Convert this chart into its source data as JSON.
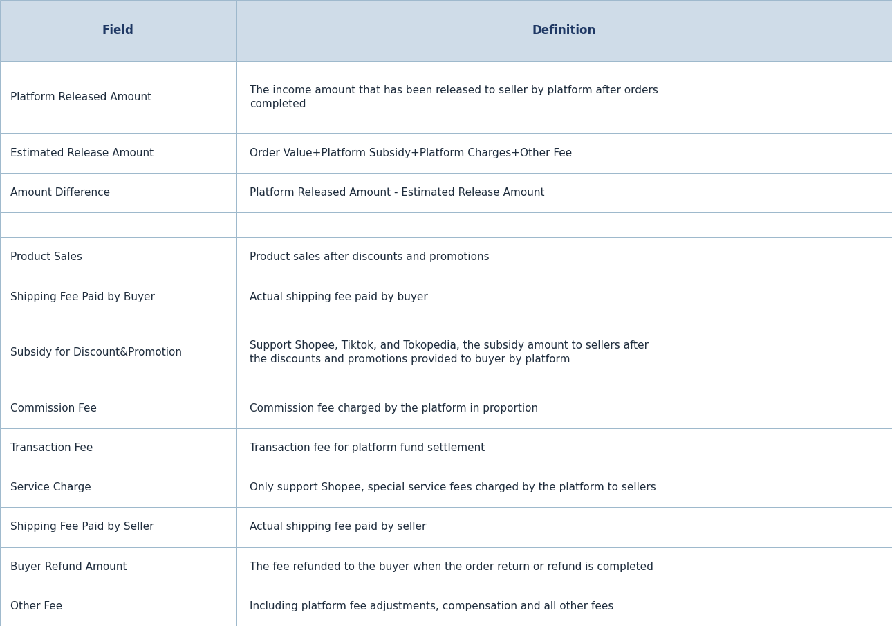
{
  "header": [
    "Field",
    "Definition"
  ],
  "rows": [
    [
      "Platform Released Amount",
      "The income amount that has been released to seller by platform after orders\ncompleted"
    ],
    [
      "Estimated Release Amount",
      "Order Value+Platform Subsidy+Platform Charges+Other Fee"
    ],
    [
      "Amount Difference",
      "Platform Released Amount - Estimated Release Amount"
    ],
    [
      "",
      ""
    ],
    [
      "Product Sales",
      "Product sales after discounts and promotions"
    ],
    [
      "Shipping Fee Paid by Buyer",
      "Actual shipping fee paid by buyer"
    ],
    [
      "Subsidy for Discount&Promotion",
      "Support Shopee, Tiktok, and Tokopedia, the subsidy amount to sellers after\nthe discounts and promotions provided to buyer by platform"
    ],
    [
      "Commission Fee",
      "Commission fee charged by the platform in proportion"
    ],
    [
      "Transaction Fee",
      "Transaction fee for platform fund settlement"
    ],
    [
      "Service Charge",
      "Only support Shopee, special service fees charged by the platform to sellers"
    ],
    [
      "Shipping Fee Paid by Seller",
      "Actual shipping fee paid by seller"
    ],
    [
      "Buyer Refund Amount",
      "The fee refunded to the buyer when the order return or refund is completed"
    ],
    [
      "Other Fee",
      "Including platform fee adjustments, compensation and all other fees"
    ]
  ],
  "header_bg_color": "#CFDCE8",
  "header_text_color": "#1F3864",
  "row_bg_color": "#FFFFFF",
  "cell_text_color": "#1F2D3D",
  "border_color": "#9DB8CC",
  "col_split": 0.265,
  "header_fontsize": 12,
  "cell_fontsize": 11,
  "fig_width": 12.9,
  "fig_height": 9.05,
  "dpi": 100,
  "row_height_units": [
    1.7,
    2.0,
    1.1,
    1.1,
    0.7,
    1.1,
    1.1,
    2.0,
    1.1,
    1.1,
    1.1,
    1.1,
    1.1,
    1.1
  ]
}
